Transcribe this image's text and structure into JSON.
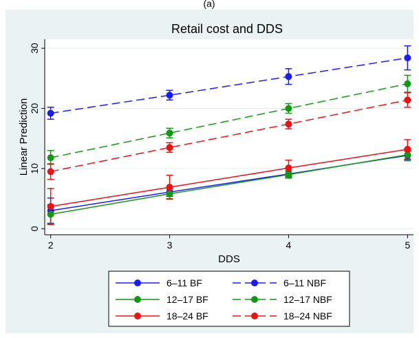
{
  "top_label": "(a)",
  "chart_data": {
    "type": "line",
    "title": "Retail cost and DDS",
    "xlabel": "DDS",
    "ylabel": "Linear Prediction",
    "x": [
      2,
      3,
      4,
      5
    ],
    "xticks": [
      2,
      3,
      4,
      5
    ],
    "yticks": [
      0,
      10,
      20,
      30
    ],
    "xlim": [
      1.95,
      5.05
    ],
    "ylim": [
      -1,
      31.5
    ],
    "grid": "horizontal",
    "legend_position": "bottom",
    "series": [
      {
        "name": "6–11 BF",
        "color": "#1a1aff",
        "dashed": false,
        "values": [
          3.0,
          6.1,
          9.1,
          12.2
        ],
        "lower": [
          0.9,
          5.4,
          8.6,
          11.5
        ],
        "upper": [
          5.1,
          6.8,
          9.6,
          12.9
        ]
      },
      {
        "name": "6–11 NBF",
        "color": "#1a1aff",
        "dashed": true,
        "values": [
          19.2,
          22.2,
          25.3,
          28.4
        ],
        "lower": [
          18.2,
          21.4,
          24.0,
          26.4
        ],
        "upper": [
          20.2,
          23.0,
          26.6,
          30.4
        ]
      },
      {
        "name": "12–17 BF",
        "color": "#119911",
        "dashed": false,
        "values": [
          2.4,
          5.8,
          9.0,
          12.3
        ],
        "lower": [
          0.8,
          5.0,
          8.4,
          11.3
        ],
        "upper": [
          4.0,
          6.6,
          9.6,
          13.3
        ]
      },
      {
        "name": "12–17 NBF",
        "color": "#119911",
        "dashed": true,
        "values": [
          11.8,
          15.9,
          20.0,
          24.1
        ],
        "lower": [
          10.7,
          15.1,
          19.2,
          22.7
        ],
        "upper": [
          13.0,
          16.7,
          20.8,
          25.5
        ]
      },
      {
        "name": "18–24 BF",
        "color": "#ee1111",
        "dashed": false,
        "values": [
          3.7,
          6.9,
          10.1,
          13.2
        ],
        "lower": [
          0.7,
          4.9,
          8.8,
          11.6
        ],
        "upper": [
          6.7,
          8.9,
          11.4,
          14.8
        ]
      },
      {
        "name": "18–24 NBF",
        "color": "#ee1111",
        "dashed": true,
        "values": [
          9.5,
          13.5,
          17.4,
          21.4
        ],
        "lower": [
          8.2,
          12.7,
          16.6,
          20.2
        ],
        "upper": [
          10.8,
          14.3,
          18.2,
          22.6
        ]
      }
    ]
  }
}
